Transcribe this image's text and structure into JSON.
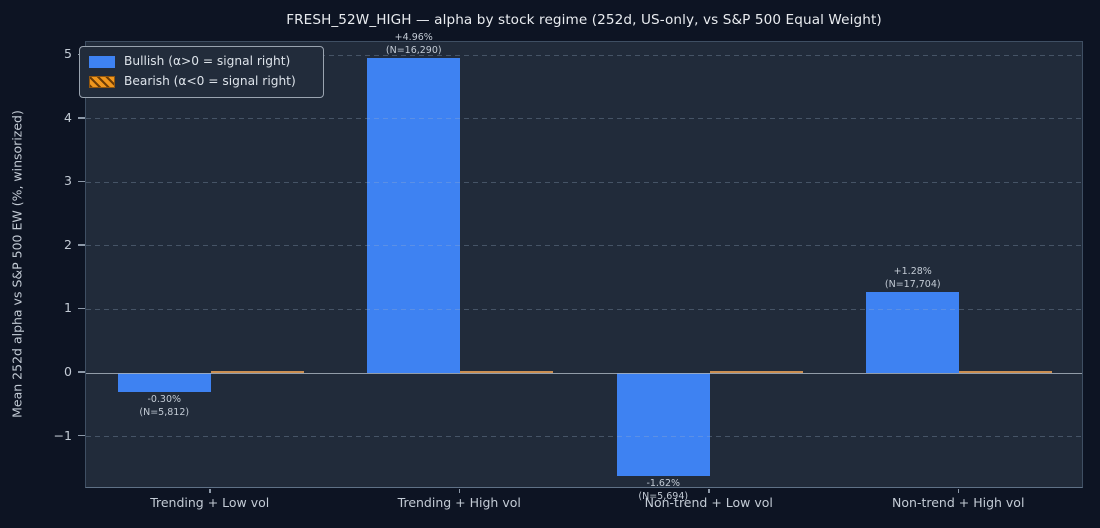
{
  "title": "FRESH_52W_HIGH — alpha by stock regime (252d, US-only, vs S&P 500 Equal Weight)",
  "ylabel": "Mean 252d alpha vs S&P 500 EW (%, winsorized)",
  "legend": {
    "bullish_label": "Bullish (α>0 = signal right)",
    "bearish_label": "Bearish (α<0 = signal right)"
  },
  "colors": {
    "background": "#0d1423",
    "plot_background": "#212b3a",
    "bullish": "#3e82f2",
    "bearish": "#f0971e",
    "bearish_hatch": "#6e3d06",
    "bearish_edge": "#93570e",
    "zero_line": "#a6b0bc",
    "zero_bearish_sliver": "#de9a55",
    "grid": "#9eb2cc",
    "text": "#c3cbd5",
    "title_text": "#e9ecf0"
  },
  "chart_data": {
    "type": "bar",
    "categories": [
      "Trending + Low vol",
      "Trending + High vol",
      "Non-trend + Low vol",
      "Non-trend + High vol"
    ],
    "series": [
      {
        "name": "Bullish (α>0 = signal right)",
        "values": [
          -0.3,
          4.96,
          -1.62,
          1.28
        ]
      },
      {
        "name": "Bearish (α<0 = signal right)",
        "values": [
          0,
          0,
          0,
          0
        ]
      }
    ],
    "bar_labels": [
      {
        "value": "-0.30%",
        "n": "(N=5,812)"
      },
      {
        "value": "+4.96%",
        "n": "(N=16,290)"
      },
      {
        "value": "-1.62%",
        "n": "(N=5,694)"
      },
      {
        "value": "+1.28%",
        "n": "(N=17,704)"
      }
    ],
    "yticks": [
      5,
      4,
      3,
      2,
      1,
      0,
      -1
    ],
    "ytick_labels": [
      "5",
      "4",
      "3",
      "2",
      "1",
      "0",
      "−1"
    ],
    "ylim": [
      -1.81,
      5.21
    ],
    "grid": "horizontal-dashed",
    "legend_position": "upper-left",
    "title": "FRESH_52W_HIGH — alpha by stock regime (252d, US-only, vs S&P 500 Equal Weight)",
    "xlabel": "",
    "ylabel": "Mean 252d alpha vs S&P 500 EW (%, winsorized)"
  }
}
